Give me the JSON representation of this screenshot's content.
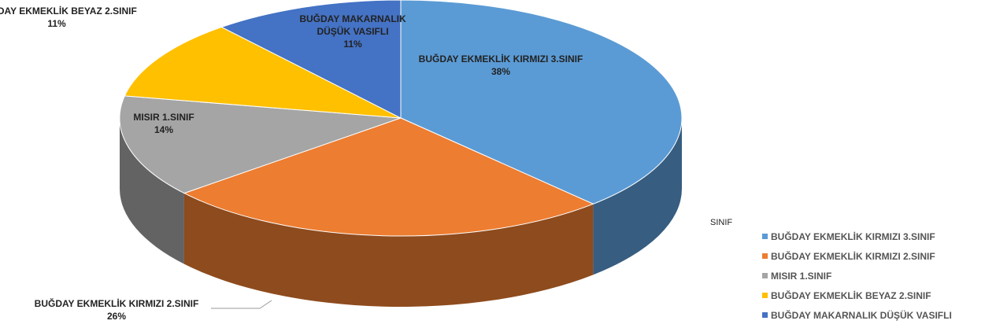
{
  "chart_data": {
    "type": "pie",
    "legend_title": "SINIF",
    "legend": "right",
    "categories": [
      "BUĞDAY EKMEKLİK KIRMIZI 3.SINIF",
      "BUĞDAY EKMEKLİK KIRMIZI 2.SINIF",
      "MISIR 1.SINIF",
      "BUĞDAY EKMEKLİK BEYAZ 2.SINIF",
      "BUĞDAY MAKARNALIK DÜŞÜK VASIFLI"
    ],
    "values": [
      38,
      26,
      14,
      11,
      11
    ],
    "value_labels": [
      "38%",
      "26%",
      "14%",
      "11%",
      "11%"
    ],
    "colors": [
      "#5b9bd5",
      "#ed7d31",
      "#a5a5a5",
      "#ffc000",
      "#4472c4"
    ]
  }
}
